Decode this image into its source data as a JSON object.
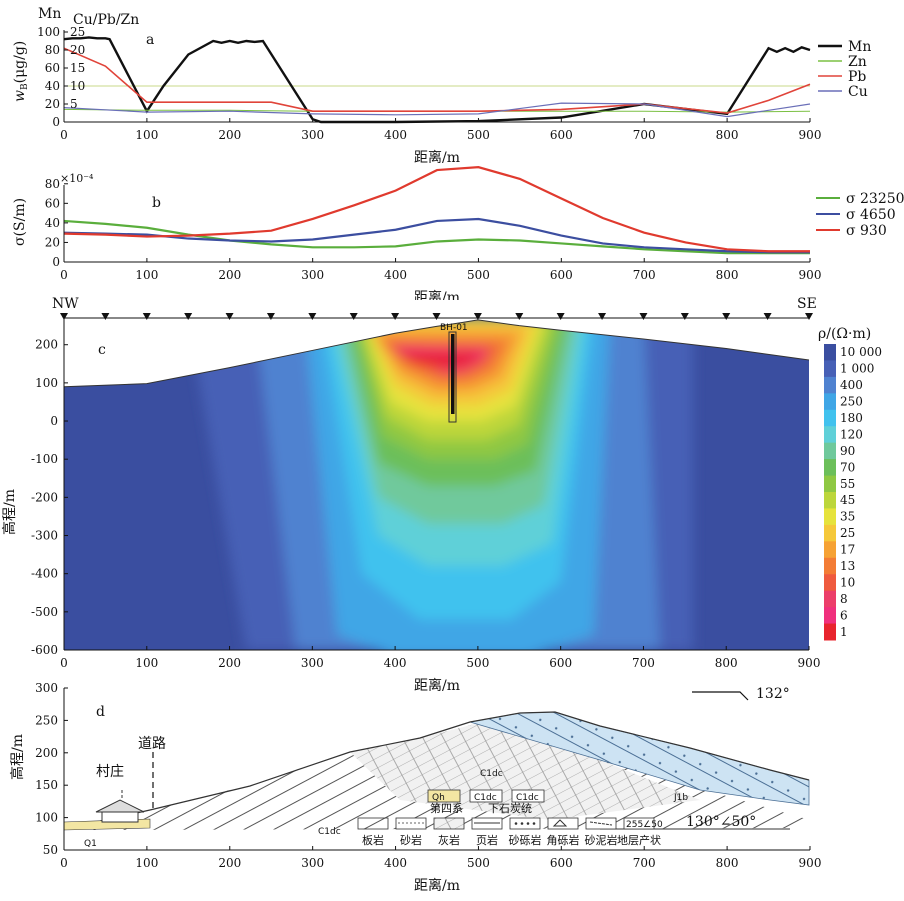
{
  "colors": {
    "Mn": "#111111",
    "Zn": "#7bc043",
    "Pb": "#e0443a",
    "Cu": "#6a6fb8",
    "s23250": "#5aae3c",
    "s4650": "#3c4ea0",
    "s930": "#e03a2e",
    "bg_res": "#3a4ea0",
    "ref_line": "#c8d889"
  },
  "chart_data": [
    {
      "panel": "a",
      "type": "line",
      "panel_label": "a",
      "xlabel": "距离/m",
      "ylabel": "wB(μg/g)",
      "ylabel_main": "w",
      "ylabel_sub": "B",
      "ylabel_rest": "(μg/g)",
      "left_axis_title_mn": "Mn",
      "left_axis_title_cu": "Cu/Pb/Zn",
      "xlim": [
        0,
        900
      ],
      "ylim": [
        0,
        100
      ],
      "xticks": [
        "0",
        "100",
        "200",
        "300",
        "400",
        "500",
        "600",
        "700",
        "800",
        "900"
      ],
      "yticks_mn": [
        "0",
        "20",
        "40",
        "60",
        "80",
        "100"
      ],
      "yticks_cu": [
        "5",
        "10",
        "15",
        "20",
        "25"
      ],
      "reference_y": 40,
      "legend_position": "right",
      "series": [
        {
          "name": "Mn",
          "color": "#111111",
          "width": 2.4,
          "x": [
            0,
            10,
            20,
            30,
            40,
            50,
            55,
            100,
            120,
            150,
            180,
            190,
            200,
            210,
            220,
            230,
            240,
            300,
            310,
            320,
            400,
            500,
            600,
            700,
            800,
            850,
            860,
            870,
            880,
            890,
            900
          ],
          "y": [
            92,
            93,
            93,
            94,
            93,
            93,
            92,
            12,
            40,
            75,
            90,
            88,
            90,
            88,
            90,
            89,
            90,
            3,
            0,
            0,
            0,
            1,
            5,
            20,
            9,
            82,
            78,
            82,
            78,
            83,
            80
          ]
        },
        {
          "name": "Zn",
          "color": "#7bc043",
          "width": 1,
          "x": [
            0,
            100,
            200,
            300,
            400,
            500,
            600,
            700,
            800,
            900
          ],
          "y": [
            14,
            13,
            13,
            12,
            12,
            12,
            12,
            12,
            11,
            12
          ]
        },
        {
          "name": "Pb",
          "color": "#e0443a",
          "width": 1.6,
          "x": [
            0,
            50,
            100,
            150,
            200,
            250,
            300,
            400,
            500,
            600,
            700,
            800,
            850,
            900
          ],
          "y": [
            82,
            62,
            22,
            22,
            22,
            22,
            12,
            12,
            12,
            14,
            20,
            10,
            24,
            42
          ]
        },
        {
          "name": "Cu",
          "color": "#6a6fb8",
          "width": 1.2,
          "x": [
            0,
            100,
            200,
            300,
            400,
            500,
            600,
            700,
            800,
            900
          ],
          "y": [
            16,
            11,
            12,
            9,
            8,
            9,
            21,
            20,
            6,
            20
          ]
        }
      ]
    },
    {
      "panel": "b",
      "type": "line",
      "panel_label": "b",
      "xlabel": "距离/m",
      "ylabel": "σ(S/m)",
      "multiplier": "×10⁻⁴",
      "xlim": [
        0,
        900
      ],
      "ylim": [
        0,
        90
      ],
      "xticks": [
        "0",
        "100",
        "200",
        "300",
        "400",
        "500",
        "600",
        "700",
        "800",
        "900"
      ],
      "yticks": [
        "0",
        "20",
        "40",
        "60",
        "80"
      ],
      "legend_position": "right",
      "series": [
        {
          "name": "σ 23250",
          "color": "#5aae3c",
          "x": [
            0,
            50,
            100,
            150,
            200,
            250,
            300,
            350,
            400,
            450,
            500,
            550,
            600,
            650,
            700,
            750,
            800,
            850,
            900
          ],
          "y": [
            42,
            39,
            35,
            28,
            22,
            18,
            15,
            15,
            16,
            21,
            23,
            22,
            19,
            16,
            13,
            11,
            9,
            9,
            9
          ]
        },
        {
          "name": "σ 4650",
          "color": "#3c4ea0",
          "x": [
            0,
            50,
            100,
            150,
            200,
            250,
            300,
            350,
            400,
            450,
            500,
            550,
            600,
            650,
            700,
            750,
            800,
            850,
            900
          ],
          "y": [
            30,
            29,
            28,
            24,
            22,
            21,
            23,
            28,
            33,
            42,
            44,
            37,
            27,
            19,
            15,
            13,
            11,
            10,
            10
          ]
        },
        {
          "name": "σ 930",
          "color": "#e03a2e",
          "x": [
            0,
            50,
            100,
            150,
            200,
            250,
            300,
            350,
            400,
            450,
            500,
            550,
            600,
            650,
            700,
            750,
            800,
            850,
            900
          ],
          "y": [
            29,
            28,
            26,
            27,
            29,
            32,
            44,
            58,
            73,
            94,
            97,
            85,
            65,
            45,
            30,
            20,
            13,
            11,
            11
          ]
        }
      ]
    },
    {
      "panel": "c",
      "type": "heatmap",
      "panel_label": "c",
      "xlabel": "距离/m",
      "ylabel": "高程/m",
      "left_label": "NW",
      "right_label": "SE",
      "borehole_label": "BH-01",
      "xlim": [
        0,
        900
      ],
      "ylim": [
        -600,
        270
      ],
      "xticks": [
        "0",
        "100",
        "200",
        "300",
        "400",
        "500",
        "600",
        "700",
        "800",
        "900"
      ],
      "yticks": [
        "-600",
        "-500",
        "-400",
        "-300",
        "-200",
        "-100",
        "0",
        "100",
        "200"
      ],
      "stations_x": [
        0,
        50,
        100,
        150,
        200,
        250,
        300,
        350,
        400,
        450,
        500,
        550,
        600,
        650,
        700,
        750,
        800,
        850,
        900
      ],
      "terrain": {
        "x": [
          0,
          100,
          200,
          300,
          400,
          450,
          480,
          500,
          550,
          600,
          700,
          800,
          900
        ],
        "y": [
          90,
          98,
          140,
          185,
          230,
          248,
          258,
          265,
          250,
          238,
          215,
          190,
          160
        ]
      },
      "colorbar_title": "ρ/(Ω·m)",
      "colorbar": [
        {
          "label": "10 000",
          "color": "#3a4ea0"
        },
        {
          "label": "1 000",
          "color": "#4760b6"
        },
        {
          "label": "400",
          "color": "#4f82d0"
        },
        {
          "label": "250",
          "color": "#3fa6e6"
        },
        {
          "label": "180",
          "color": "#41c2ee"
        },
        {
          "label": "120",
          "color": "#5fd0d8"
        },
        {
          "label": "90",
          "color": "#6fc99c"
        },
        {
          "label": "70",
          "color": "#6cbf5a"
        },
        {
          "label": "55",
          "color": "#8fc843"
        },
        {
          "label": "45",
          "color": "#bcd63b"
        },
        {
          "label": "35",
          "color": "#e6e33c"
        },
        {
          "label": "25",
          "color": "#f5c83a"
        },
        {
          "label": "17",
          "color": "#f6a234"
        },
        {
          "label": "13",
          "color": "#f37c35"
        },
        {
          "label": "10",
          "color": "#ef5a3e"
        },
        {
          "label": "8",
          "color": "#ec3e6a"
        },
        {
          "label": "6",
          "color": "#f0307d"
        },
        {
          "label": "1",
          "color": "#e8242e"
        }
      ]
    },
    {
      "panel": "d",
      "type": "diagram",
      "panel_label": "d",
      "xlabel": "距离/m",
      "ylabel": "高程/m",
      "xlim": [
        0,
        900
      ],
      "ylim": [
        50,
        300
      ],
      "xticks": [
        "0",
        "100",
        "200",
        "300",
        "400",
        "500",
        "600",
        "700",
        "800",
        "900"
      ],
      "yticks": [
        "50",
        "100",
        "150",
        "200",
        "250",
        "300"
      ],
      "village_label": "村庄",
      "road_label": "道路",
      "orientation_label": "132°",
      "attitude_label": "130°∠50°",
      "unit_labels": [
        "C1dc",
        "C1dc",
        "J1b",
        "Q1"
      ],
      "legend_top": [
        {
          "code": "Qh",
          "name": "第四系"
        },
        {
          "code": "C1dc",
          "name": ""
        },
        {
          "code": "C1dc",
          "name": ""
        }
      ],
      "legend_top_caption": "下石炭统",
      "legend_bottom": [
        "板岩",
        "砂岩",
        "灰岩",
        "页岩",
        "砂砾岩",
        "角砾岩",
        "砂泥岩",
        "地层产状"
      ],
      "legend_attitude_sample": "255∠50"
    }
  ]
}
